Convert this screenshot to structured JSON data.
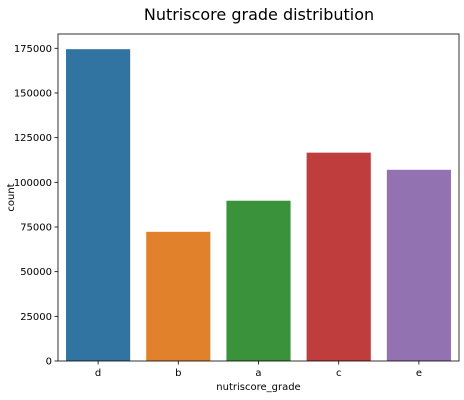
{
  "chart_data": {
    "type": "bar",
    "title": "Nutriscore grade distribution",
    "xlabel": "nutriscore_grade",
    "ylabel": "count",
    "categories": [
      "d",
      "b",
      "a",
      "c",
      "e"
    ],
    "values": [
      174500,
      72300,
      89700,
      116600,
      107000
    ],
    "colors": [
      "#3274a1",
      "#e1812c",
      "#3a923a",
      "#c03d3e",
      "#9372b2"
    ],
    "ylim": [
      0,
      183000
    ],
    "yticks": [
      0,
      25000,
      50000,
      75000,
      100000,
      125000,
      150000,
      175000
    ],
    "grid": false,
    "legend": "none"
  }
}
